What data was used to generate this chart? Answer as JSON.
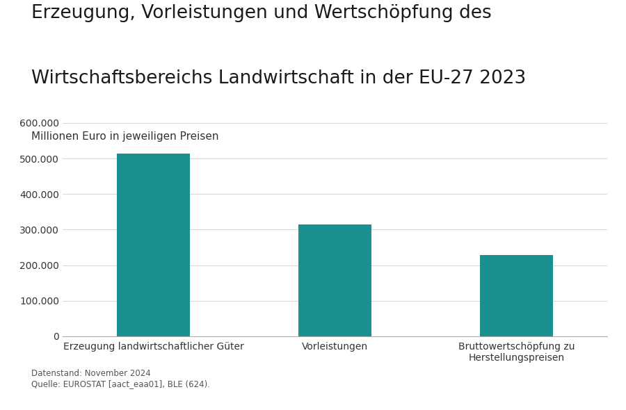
{
  "title_line1": "Erzeugung, Vorleistungen und Wertschöpfung des",
  "title_line2": "Wirtschaftsbereichs Landwirtschaft in der EU-27 2023",
  "subtitle": "Millionen Euro in jeweiligen Preisen",
  "categories": [
    "Erzeugung landwirtschaftlicher Güter",
    "Vorleistungen",
    "Bruttowertschöpfung zu\nHerstellungspreisen"
  ],
  "values": [
    514000,
    315000,
    228000
  ],
  "bar_color": "#1a9090",
  "ylim": [
    0,
    600000
  ],
  "yticks": [
    0,
    100000,
    200000,
    300000,
    400000,
    500000,
    600000
  ],
  "ytick_labels": [
    "0",
    "100.000",
    "200.000",
    "300.000",
    "400.000",
    "500.000",
    "600.000"
  ],
  "background_color": "#ffffff",
  "footnote_line1": "Datenstand: November 2024",
  "footnote_line2": "Quelle: EUROSTAT [aact_eaa01], BLE (624).",
  "title_fontsize": 19,
  "subtitle_fontsize": 11,
  "tick_fontsize": 10,
  "footnote_fontsize": 8.5,
  "xtick_fontsize": 10
}
